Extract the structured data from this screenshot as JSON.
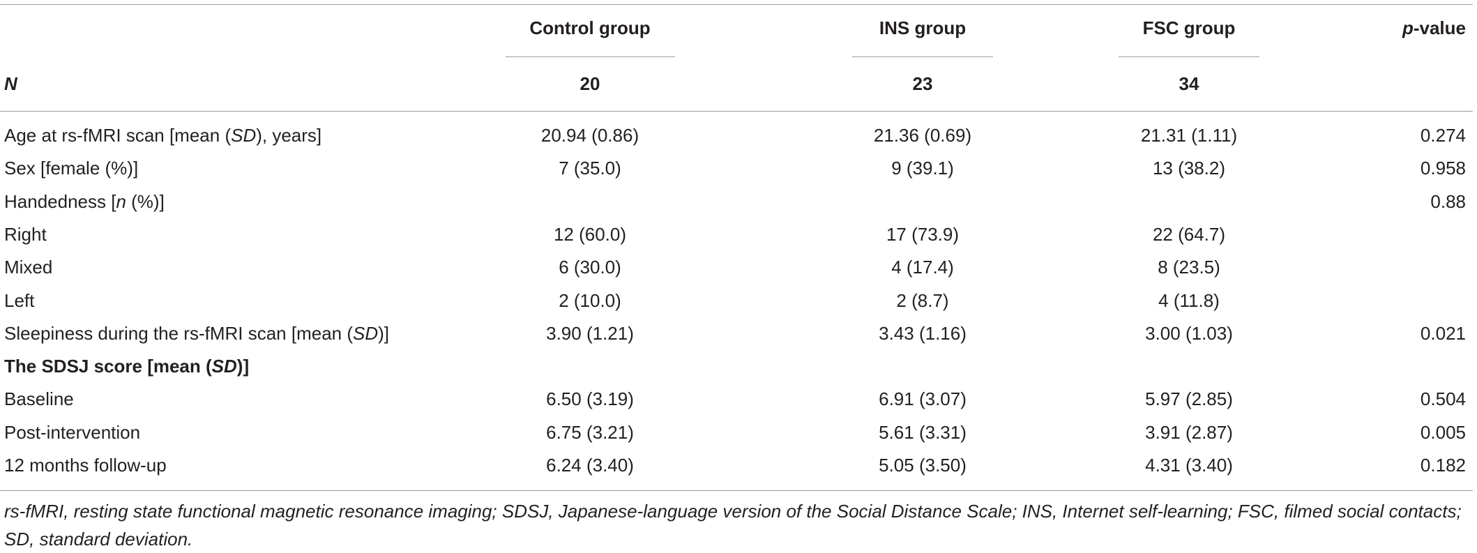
{
  "table": {
    "headers": {
      "label": "",
      "control": "Control group",
      "ins": "INS group",
      "fsc": "FSC group",
      "p_prefix": "p",
      "p_suffix": "-value"
    },
    "n_row": {
      "label": "N",
      "control": "20",
      "ins": "23",
      "fsc": "34"
    },
    "rows": [
      {
        "parts": [
          "Age at rs-fMRI scan [mean (",
          "SD",
          "), years]"
        ],
        "control": "20.94 (0.86)",
        "ins": "21.36 (0.69)",
        "fsc": "21.31 (1.11)",
        "p": "0.274"
      },
      {
        "parts": [
          "Sex [female (%)]",
          "",
          ""
        ],
        "control": "7 (35.0)",
        "ins": "9 (39.1)",
        "fsc": "13 (38.2)",
        "p": "0.958"
      },
      {
        "parts": [
          "Handedness [",
          "n",
          " (%)]"
        ],
        "control": "",
        "ins": "",
        "fsc": "",
        "p": "0.88"
      },
      {
        "parts": [
          "Right",
          "",
          ""
        ],
        "control": "12 (60.0)",
        "ins": "17 (73.9)",
        "fsc": "22 (64.7)",
        "p": ""
      },
      {
        "parts": [
          "Mixed",
          "",
          ""
        ],
        "control": "6 (30.0)",
        "ins": "4 (17.4)",
        "fsc": "8 (23.5)",
        "p": ""
      },
      {
        "parts": [
          "Left",
          "",
          ""
        ],
        "control": "2 (10.0)",
        "ins": "2 (8.7)",
        "fsc": "4 (11.8)",
        "p": ""
      },
      {
        "parts": [
          "Sleepiness during the rs-fMRI scan [mean (",
          "SD",
          ")]"
        ],
        "control": "3.90 (1.21)",
        "ins": "3.43 (1.16)",
        "fsc": "3.00 (1.03)",
        "p": "0.021"
      },
      {
        "parts": [
          "The SDSJ score [mean (",
          "SD",
          ")]"
        ],
        "control": "",
        "ins": "",
        "fsc": "",
        "p": ""
      },
      {
        "parts": [
          "Baseline",
          "",
          ""
        ],
        "control": "6.50 (3.19)",
        "ins": "6.91 (3.07)",
        "fsc": "5.97 (2.85)",
        "p": "0.504"
      },
      {
        "parts": [
          "Post-intervention",
          "",
          ""
        ],
        "control": "6.75 (3.21)",
        "ins": "5.61 (3.31)",
        "fsc": "3.91 (2.87)",
        "p": "0.005"
      },
      {
        "parts": [
          "12 months follow-up",
          "",
          ""
        ],
        "control": "6.24 (3.40)",
        "ins": "5.05 (3.50)",
        "fsc": "4.31 (3.40)",
        "p": "0.182"
      }
    ]
  },
  "footnote": "rs-fMRI, resting state functional magnetic resonance imaging; SDSJ, Japanese-language version of the Social Distance Scale; INS, Internet self-learning; FSC, filmed social contacts; SD, standard deviation."
}
